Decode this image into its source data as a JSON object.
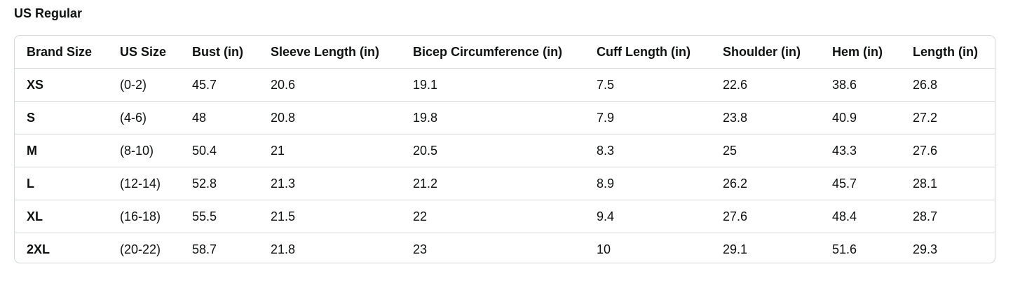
{
  "title": "US Regular",
  "table": {
    "headers": [
      "Brand Size",
      "US Size",
      "Bust (in)",
      "Sleeve Length (in)",
      "Bicep Circumference (in)",
      "Cuff Length (in)",
      "Shoulder (in)",
      "Hem (in)",
      "Length (in)"
    ],
    "rows": [
      [
        "XS",
        "(0-2)",
        "45.7",
        "20.6",
        "19.1",
        "7.5",
        "22.6",
        "38.6",
        "26.8"
      ],
      [
        "S",
        "(4-6)",
        "48",
        "20.8",
        "19.8",
        "7.9",
        "23.8",
        "40.9",
        "27.2"
      ],
      [
        "M",
        "(8-10)",
        "50.4",
        "21",
        "20.5",
        "8.3",
        "25",
        "43.3",
        "27.6"
      ],
      [
        "L",
        "(12-14)",
        "52.8",
        "21.3",
        "21.2",
        "8.9",
        "26.2",
        "45.7",
        "28.1"
      ],
      [
        "XL",
        "(16-18)",
        "55.5",
        "21.5",
        "22",
        "9.4",
        "27.6",
        "48.4",
        "28.7"
      ],
      [
        "2XL",
        "(20-22)",
        "58.7",
        "21.8",
        "23",
        "10",
        "29.1",
        "51.6",
        "29.3"
      ]
    ]
  }
}
